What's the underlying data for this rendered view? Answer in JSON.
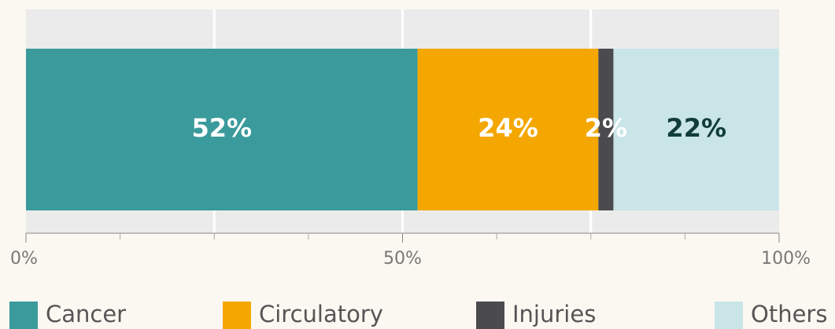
{
  "chart_data": {
    "type": "stacked_bar_horizontal",
    "series": [
      {
        "name": "Cancer",
        "color": "#3b9a9b",
        "values": [
          52
        ],
        "value_labels": [
          "52%"
        ],
        "label_color": "#ffffff"
      },
      {
        "name": "Circulatory",
        "color": "#f4a700",
        "values": [
          24
        ],
        "value_labels": [
          "24%"
        ],
        "label_color": "#ffffff"
      },
      {
        "name": "Injuries",
        "color": "#4b4b4e",
        "values": [
          2
        ],
        "value_labels": [
          "2%"
        ],
        "label_color": "#ffffff"
      },
      {
        "name": "Others",
        "color": "#c9e5e7",
        "values": [
          22
        ],
        "value_labels": [
          "22%"
        ],
        "label_color": "#123c3c"
      }
    ],
    "xlim": [
      0,
      100
    ],
    "xticks": [
      {
        "value": 0,
        "label": "0%"
      },
      {
        "value": 50,
        "label": "50%"
      },
      {
        "value": 100,
        "label": "100%"
      }
    ],
    "minor_xticks": [
      12.5,
      25,
      37.5,
      62.5,
      75,
      87.5
    ],
    "grid_lines": [
      25,
      50,
      75
    ],
    "legend": "bottom"
  }
}
